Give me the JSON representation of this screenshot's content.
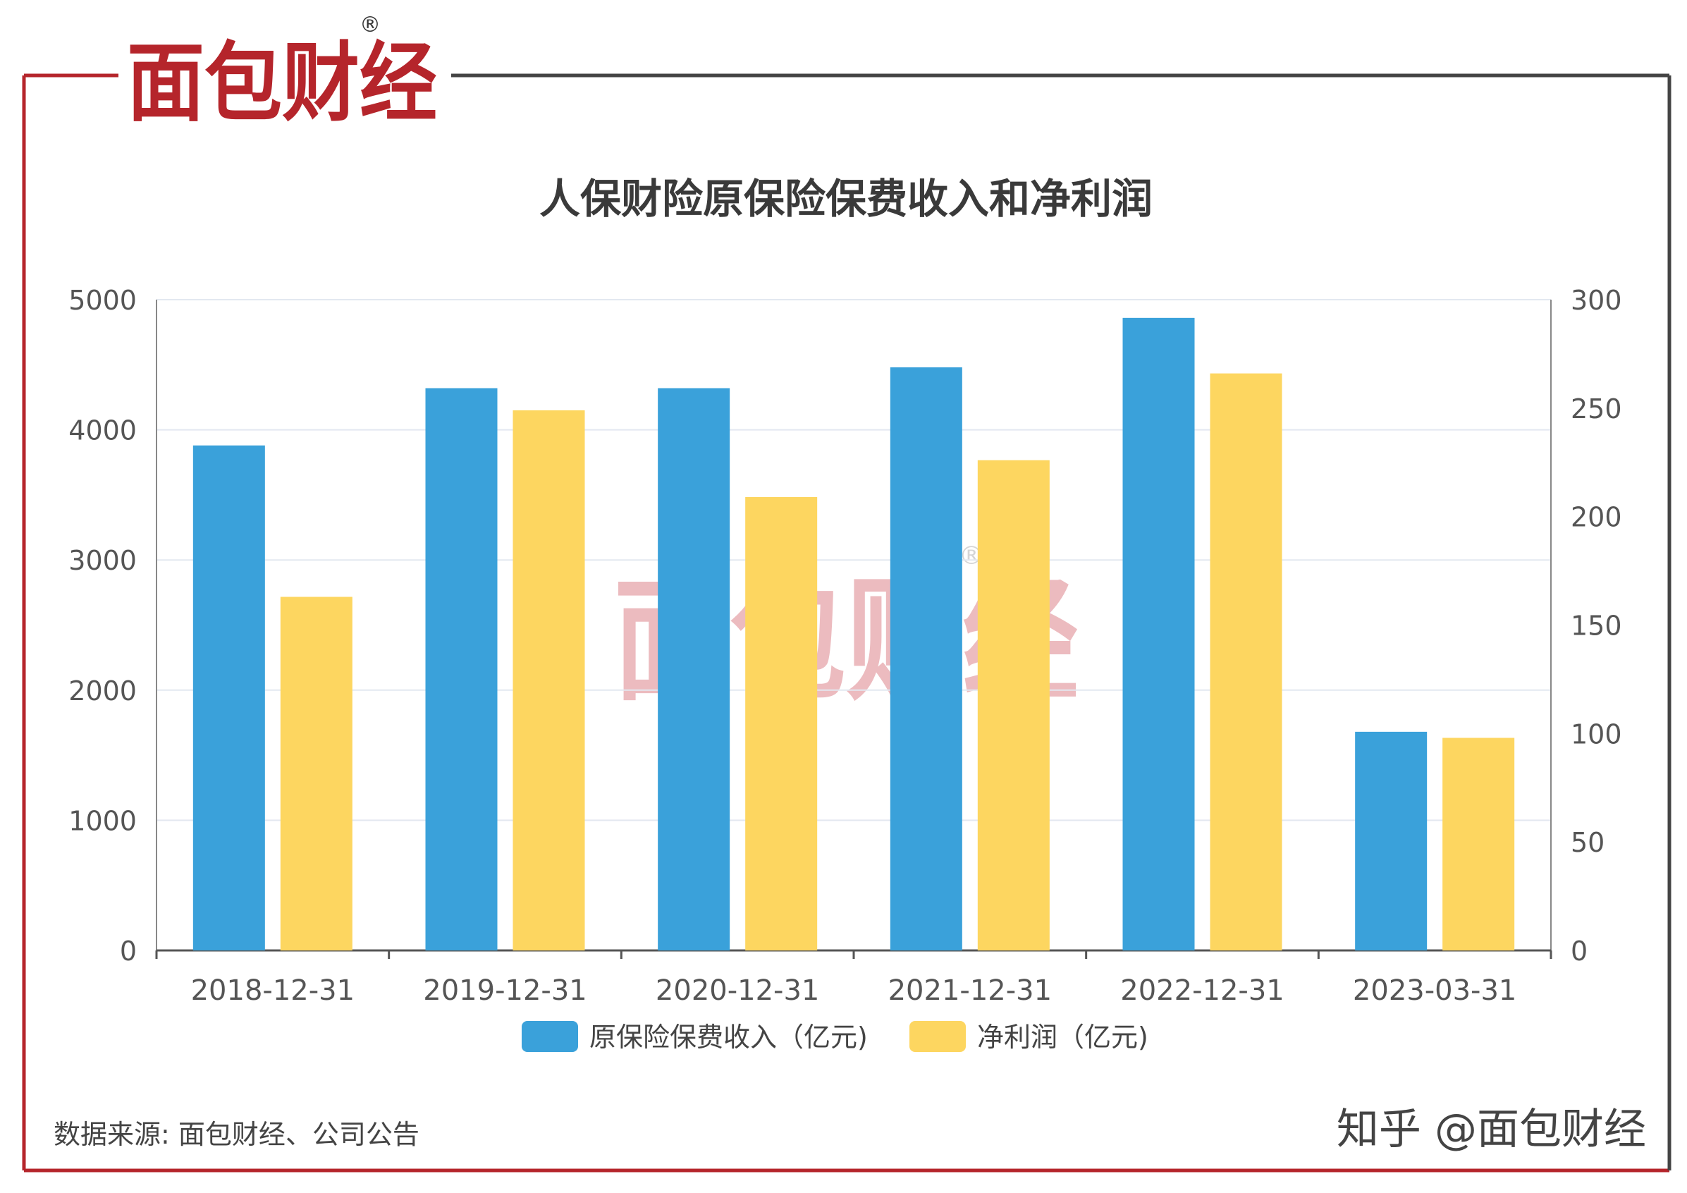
{
  "brand": {
    "logo_text": "面包财经",
    "registered_mark": "®",
    "colors": {
      "red": "#b5252b",
      "dark": "#1e1e1e",
      "frame_gray": "#444444"
    }
  },
  "footer": {
    "source": "数据来源: 面包财经、公司公告",
    "credit": "知乎 @面包财经"
  },
  "chart_data": {
    "type": "bar",
    "title": "人保财险原保险保费收入和净利润",
    "categories": [
      "2018-12-31",
      "2019-12-31",
      "2020-12-31",
      "2021-12-31",
      "2022-12-31",
      "2023-03-31"
    ],
    "series": [
      {
        "name": "原保险保费收入（亿元)",
        "axis": "left",
        "color": "#3aa1da",
        "values": [
          3880,
          4320,
          4320,
          4480,
          4860,
          1680
        ]
      },
      {
        "name": "净利润（亿元)",
        "axis": "right",
        "color": "#fdd660",
        "values": [
          163,
          249,
          209,
          226,
          266,
          98
        ]
      }
    ],
    "y_left": {
      "ylim": [
        0,
        5000
      ],
      "ticks": [
        "0",
        "1000",
        "2000",
        "3000",
        "4000",
        "5000"
      ]
    },
    "y_right": {
      "ylim": [
        0,
        300
      ],
      "ticks": [
        "0",
        "50",
        "100",
        "150",
        "200",
        "250",
        "300"
      ]
    },
    "grid": true,
    "legend": "bottom-center"
  }
}
